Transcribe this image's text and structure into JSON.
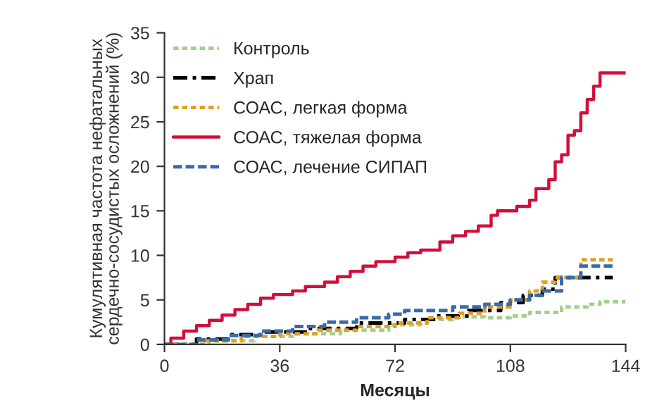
{
  "chart_data": {
    "type": "step",
    "xlabel": "Месяцы",
    "ylabel": "Кумулятивная частота нефатальных\nсердечно-сосудистых осложнений (%)",
    "xlim": [
      0,
      144
    ],
    "xticks": [
      0,
      36,
      72,
      108,
      144
    ],
    "ylim": [
      0,
      35
    ],
    "yticks": [
      0,
      5,
      10,
      15,
      20,
      25,
      30,
      35
    ],
    "grid": false,
    "legend": "top left",
    "series": [
      {
        "name": "Контроль",
        "color": "#a3cf8f",
        "line_style": "dotted",
        "x": [
          0,
          14,
          28,
          40,
          55,
          70,
          80,
          90,
          100,
          108,
          114,
          124,
          132,
          136,
          144
        ],
        "values": [
          0,
          0.4,
          0.9,
          1.2,
          1.6,
          2.2,
          2.8,
          3.1,
          3.0,
          3.2,
          3.6,
          4.2,
          4.5,
          4.8,
          4.8
        ]
      },
      {
        "name": "Храп",
        "color": "#000000",
        "line_style": "dashdot",
        "x": [
          0,
          10,
          20,
          30,
          45,
          60,
          75,
          85,
          95,
          105,
          112,
          118,
          122,
          140
        ],
        "values": [
          0,
          0.6,
          1.1,
          1.4,
          1.8,
          2.4,
          2.8,
          3.2,
          3.8,
          4.7,
          5.5,
          6.2,
          7.5,
          7.5
        ]
      },
      {
        "name": "СОАС, легкая форма",
        "color": "#e0a020",
        "line_style": "dotted",
        "x": [
          0,
          12,
          24,
          36,
          48,
          60,
          72,
          82,
          92,
          100,
          108,
          114,
          118,
          122,
          130,
          140
        ],
        "values": [
          0,
          0.4,
          0.9,
          1.2,
          1.6,
          2.0,
          2.4,
          3.0,
          3.5,
          4.2,
          5.0,
          6.0,
          7.0,
          7.5,
          9.5,
          9.5
        ]
      },
      {
        "name": "СОАС, тяжелая форма",
        "color": "#d0103a",
        "line_style": "solid",
        "x": [
          0,
          2,
          6,
          10,
          14,
          18,
          22,
          26,
          30,
          34,
          40,
          44,
          50,
          54,
          58,
          62,
          66,
          72,
          76,
          80,
          86,
          90,
          94,
          98,
          102,
          104,
          110,
          114,
          116,
          120,
          122,
          124,
          126,
          128,
          130,
          132,
          134,
          136,
          144
        ],
        "values": [
          0,
          0.7,
          1.5,
          2.1,
          2.7,
          3.3,
          3.9,
          4.5,
          5.2,
          5.6,
          6.0,
          6.5,
          7.0,
          7.6,
          8.2,
          8.8,
          9.3,
          9.8,
          10.3,
          10.6,
          11.5,
          12.2,
          12.7,
          13.3,
          14.5,
          15.0,
          15.5,
          16.2,
          17.5,
          18.5,
          20.5,
          21.3,
          23.5,
          24.0,
          26.0,
          27.5,
          29.0,
          30.5,
          30.5
        ]
      },
      {
        "name": "СОАС, лечение СИПАП",
        "color": "#3a6aa8",
        "line_style": "dashed",
        "x": [
          0,
          10,
          20,
          30,
          40,
          50,
          60,
          70,
          75,
          90,
          100,
          108,
          114,
          118,
          124,
          130,
          140
        ],
        "values": [
          0,
          0.5,
          1.0,
          1.5,
          2.0,
          2.5,
          3.0,
          3.4,
          3.8,
          4.2,
          4.5,
          5.0,
          5.5,
          6.0,
          7.5,
          8.8,
          8.8
        ]
      }
    ]
  }
}
